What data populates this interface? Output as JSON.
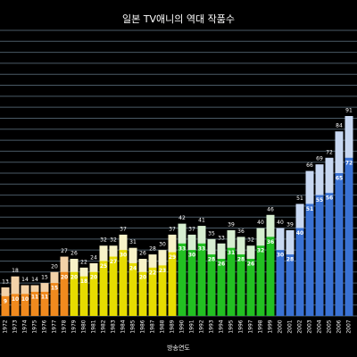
{
  "chart_data": {
    "type": "bar",
    "title": "일본 TV애니의 역대 작품수",
    "xlabel": "방송연도",
    "categories": [
      "1972",
      "1973",
      "1974",
      "1975",
      "1976",
      "1977",
      "1978",
      "1979",
      "1980",
      "1981",
      "1982",
      "1983",
      "1984",
      "1985",
      "1986",
      "1987",
      "1988",
      "1989",
      "1990",
      "1991",
      "1992",
      "1993",
      "1994",
      "1995",
      "1996",
      "1997",
      "1998",
      "1999",
      "2000",
      "2001",
      "2002",
      "2003",
      "2004",
      "2005",
      "2006",
      "2007"
    ],
    "series": [
      {
        "values": [
          13,
          18,
          14,
          14,
          15,
          20,
          27,
          26,
          22,
          24,
          32,
          32,
          37,
          31,
          26,
          28,
          30,
          37,
          42,
          37,
          41,
          35,
          33,
          39,
          36,
          32,
          40,
          46,
          40,
          39,
          51,
          66,
          69,
          72,
          84,
          91
        ],
        "colors": [
          "#f3d2a8",
          "#f3d2a8",
          "#f3d2a8",
          "#f3d2a8",
          "#f3d2a8",
          "#f3d2a8",
          "#f3d2a8",
          "#f7f2c8",
          "#f7f2c8",
          "#f7f2c8",
          "#f7f2c8",
          "#f7f2c8",
          "#f7f2c8",
          "#f7f2c8",
          "#f7f2c8",
          "#f7f2c8",
          "#f7f2c8",
          "#f7f2c8",
          "#d6eed0",
          "#d6eed0",
          "#d6eed0",
          "#d6eed0",
          "#d6eed0",
          "#d6eed0",
          "#d6eed0",
          "#d6eed0",
          "#d6eed0",
          "#d6eed0",
          "#c8d8f2",
          "#c8d8f2",
          "#c8d8f2",
          "#c8d8f2",
          "#c8d8f2",
          "#c8d8f2",
          "#c8d8f2",
          "#c8d8f2"
        ]
      },
      {
        "values": [
          9,
          10,
          10,
          11,
          11,
          15,
          20,
          20,
          18,
          20,
          25,
          27,
          30,
          24,
          20,
          22,
          23,
          29,
          33,
          30,
          33,
          28,
          26,
          31,
          28,
          26,
          32,
          36,
          30,
          28,
          40,
          51,
          55,
          56,
          65,
          72
        ],
        "colors": [
          "#f08a1e",
          "#f08a1e",
          "#f08a1e",
          "#f08a1e",
          "#f08a1e",
          "#f08a1e",
          "#f08a1e",
          "#e6dc00",
          "#e6dc00",
          "#e6dc00",
          "#e6dc00",
          "#e6dc00",
          "#e6dc00",
          "#e6dc00",
          "#e6dc00",
          "#e6dc00",
          "#e6dc00",
          "#e6dc00",
          "#22c022",
          "#22c022",
          "#22c022",
          "#22c022",
          "#22c022",
          "#22c022",
          "#22c022",
          "#22c022",
          "#22c022",
          "#22c022",
          "#3a72d4",
          "#3a72d4",
          "#3a72d4",
          "#3a72d4",
          "#3a72d4",
          "#3a72d4",
          "#3a72d4",
          "#3a72d4"
        ]
      }
    ],
    "ylim": [
      0,
      130
    ],
    "yticks": [
      0,
      5,
      10,
      15,
      20,
      25,
      30,
      35,
      40,
      45,
      50,
      55,
      60,
      65,
      70,
      75,
      80,
      85,
      90,
      95,
      100,
      105,
      110,
      115,
      120,
      125,
      130
    ],
    "grid": true
  }
}
